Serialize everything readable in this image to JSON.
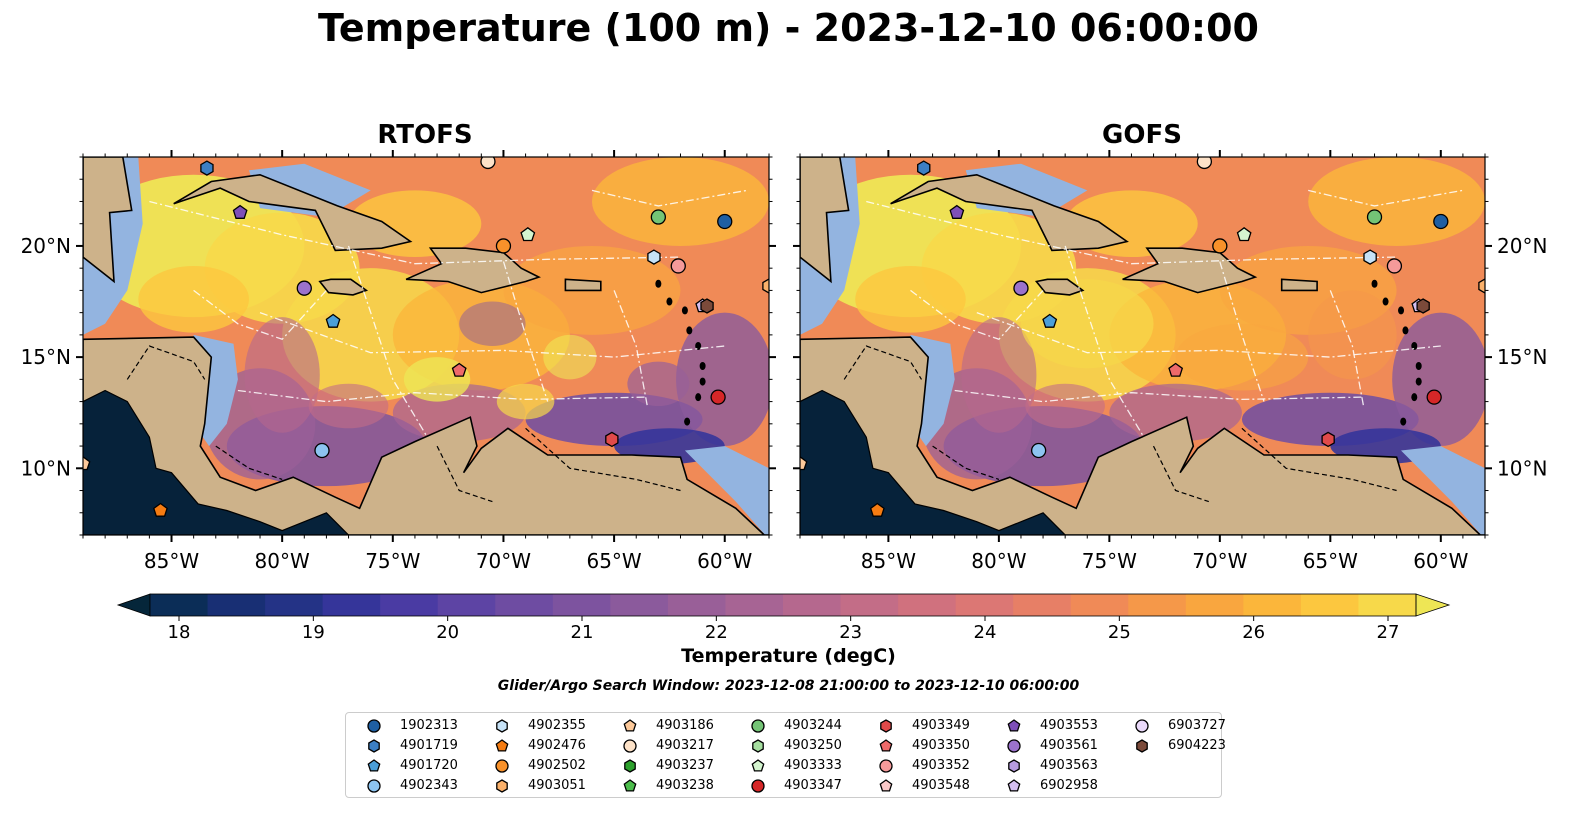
{
  "title": "Temperature (100 m) - 2023-12-10 06:00:00",
  "panels": [
    {
      "title": "RTOFS",
      "variant": "rtofs"
    },
    {
      "title": "GOFS",
      "variant": "gofs"
    }
  ],
  "axes": {
    "lon_ticks": [
      "85°W",
      "80°W",
      "75°W",
      "70°W",
      "65°W",
      "60°W"
    ],
    "lon_values": [
      -85,
      -80,
      -75,
      -70,
      -65,
      -60
    ],
    "lat_ticks": [
      "10°N",
      "15°N",
      "20°N"
    ],
    "lat_values": [
      10,
      15,
      20
    ],
    "lon_range": [
      -89,
      -58
    ],
    "lat_range": [
      7,
      24
    ]
  },
  "colorbar": {
    "label": "Temperature (degC)",
    "ticks": [
      "18",
      "19",
      "20",
      "21",
      "22",
      "23",
      "24",
      "25",
      "26",
      "27"
    ],
    "range": [
      18,
      27
    ],
    "step": 0.5,
    "extend": "both",
    "colors": [
      "#05263a",
      "#0b2d57",
      "#182f74",
      "#243386",
      "#35359a",
      "#4a3ba3",
      "#5d44a4",
      "#6e4ca2",
      "#7d539f",
      "#8b5a9c",
      "#995f98",
      "#a76494",
      "#b5688e",
      "#c36d87",
      "#d0717e",
      "#dc7774",
      "#e77f66",
      "#f08a57",
      "#f59849",
      "#f9a63f",
      "#fbb63b",
      "#fcc73f",
      "#f7d94a",
      "#eee655"
    ]
  },
  "search_window": "Glider/Argo Search Window: 2023-12-08 21:00:00 to 2023-12-10 06:00:00",
  "legend": [
    {
      "label": "1902313",
      "shape": "circle",
      "color": "#1f5fa3"
    },
    {
      "label": "4901719",
      "shape": "hexagon",
      "color": "#3c7fc4"
    },
    {
      "label": "4901720",
      "shape": "pentagon",
      "color": "#4b9fd9"
    },
    {
      "label": "4902343",
      "shape": "circle",
      "color": "#8dc4f0"
    },
    {
      "label": "4902355",
      "shape": "hexagon",
      "color": "#c6e2f7"
    },
    {
      "label": "4902476",
      "shape": "pentagon",
      "color": "#f57c12"
    },
    {
      "label": "4902502",
      "shape": "circle",
      "color": "#f8912a"
    },
    {
      "label": "4903051",
      "shape": "hexagon",
      "color": "#fbb16b"
    },
    {
      "label": "4903186",
      "shape": "pentagon",
      "color": "#fdc99a"
    },
    {
      "label": "4903217",
      "shape": "circle",
      "color": "#fde2c8"
    },
    {
      "label": "4903237",
      "shape": "hexagon",
      "color": "#2ca02c"
    },
    {
      "label": "4903238",
      "shape": "pentagon",
      "color": "#4cbd4c"
    },
    {
      "label": "4903244",
      "shape": "circle",
      "color": "#74c476"
    },
    {
      "label": "4903250",
      "shape": "hexagon",
      "color": "#a6dfa0"
    },
    {
      "label": "4903333",
      "shape": "pentagon",
      "color": "#d4f5cf"
    },
    {
      "label": "4903347",
      "shape": "circle",
      "color": "#d62728"
    },
    {
      "label": "4903349",
      "shape": "hexagon",
      "color": "#e04a4a"
    },
    {
      "label": "4903350",
      "shape": "pentagon",
      "color": "#ee6a6a"
    },
    {
      "label": "4903352",
      "shape": "circle",
      "color": "#f59a9a"
    },
    {
      "label": "4903548",
      "shape": "pentagon",
      "color": "#fbc9c9"
    },
    {
      "label": "4903553",
      "shape": "pentagon",
      "color": "#7e4fb8"
    },
    {
      "label": "4903561",
      "shape": "circle",
      "color": "#9b72cc"
    },
    {
      "label": "4903563",
      "shape": "hexagon",
      "color": "#b89ce0"
    },
    {
      "label": "6902958",
      "shape": "pentagon",
      "color": "#d5bff0"
    },
    {
      "label": "6903727",
      "shape": "circle",
      "color": "#ead9fa"
    },
    {
      "label": "6904223",
      "shape": "hexagon",
      "color": "#7b4a3a"
    }
  ],
  "floats": [
    {
      "id": "1902313",
      "lon": -60.0,
      "lat": 21.1
    },
    {
      "id": "4901719",
      "lon": -83.4,
      "lat": 23.5
    },
    {
      "id": "4901720",
      "lon": -77.7,
      "lat": 16.6
    },
    {
      "id": "4902343",
      "lon": -78.2,
      "lat": 10.8
    },
    {
      "id": "4902355",
      "lon": -63.2,
      "lat": 19.5
    },
    {
      "id": "4902476",
      "lon": -85.5,
      "lat": 8.1
    },
    {
      "id": "4902502",
      "lon": -70.0,
      "lat": 20.0
    },
    {
      "id": "4903051",
      "lon": -58.0,
      "lat": 18.2
    },
    {
      "id": "4903186",
      "lon": -89.0,
      "lat": 10.2
    },
    {
      "id": "4903217",
      "lon": -70.7,
      "lat": 23.8
    },
    {
      "id": "4903244",
      "lon": -63.0,
      "lat": 21.3
    },
    {
      "id": "4903333",
      "lon": -68.9,
      "lat": 20.5
    },
    {
      "id": "4903347",
      "lon": -60.3,
      "lat": 13.2
    },
    {
      "id": "4903349",
      "lon": -65.1,
      "lat": 11.3
    },
    {
      "id": "4903350",
      "lon": -72.0,
      "lat": 14.4
    },
    {
      "id": "4903352",
      "lon": -62.1,
      "lat": 19.1
    },
    {
      "id": "4903553",
      "lon": -81.9,
      "lat": 21.5
    },
    {
      "id": "4903561",
      "lon": -79.0,
      "lat": 18.1
    },
    {
      "id": "6902958",
      "lon": -61.0,
      "lat": 17.3
    },
    {
      "id": "6904223",
      "lon": -60.8,
      "lat": 17.3
    }
  ]
}
